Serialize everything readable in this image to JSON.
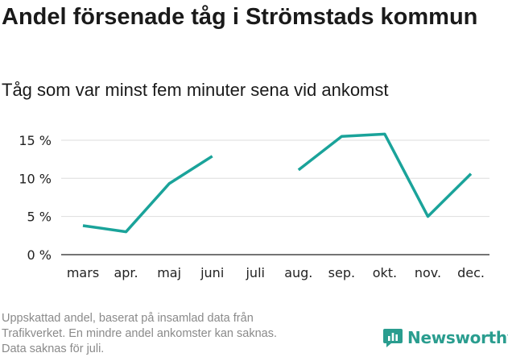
{
  "title": "Andel försenade tåg i Strömstads kommun",
  "subtitle": "Tåg som var minst fem minuter sena vid ankomst",
  "footnote": [
    "Uppskattad andel, baserat på insamlad data från",
    "Trafikverket. En mindre andel ankomster kan saknas.",
    "Data saknas för juli."
  ],
  "logo": {
    "text": "Newsworthy",
    "icon": "newsworthy-logo-icon"
  },
  "colors": {
    "line": "#1aa39a",
    "grid": "#dddddd",
    "axis": "#222222",
    "brand": "#2a9d8f"
  },
  "chart_data": {
    "type": "line",
    "title": "Andel försenade tåg i Strömstads kommun",
    "xlabel": "",
    "ylabel": "",
    "categories": [
      "mars",
      "apr.",
      "maj",
      "juni",
      "juli",
      "aug.",
      "sep.",
      "okt.",
      "nov.",
      "dec."
    ],
    "series": [
      {
        "name": "Andel försenade tåg",
        "values": [
          3.8,
          3.0,
          9.3,
          12.9,
          null,
          11.1,
          15.5,
          15.8,
          5.0,
          10.6
        ]
      }
    ],
    "yticks": [
      0,
      5,
      10,
      15
    ],
    "ytick_labels": [
      "0 %",
      "5 %",
      "10 %",
      "15 %"
    ],
    "ylim": [
      0,
      16.5
    ],
    "grid": true
  }
}
